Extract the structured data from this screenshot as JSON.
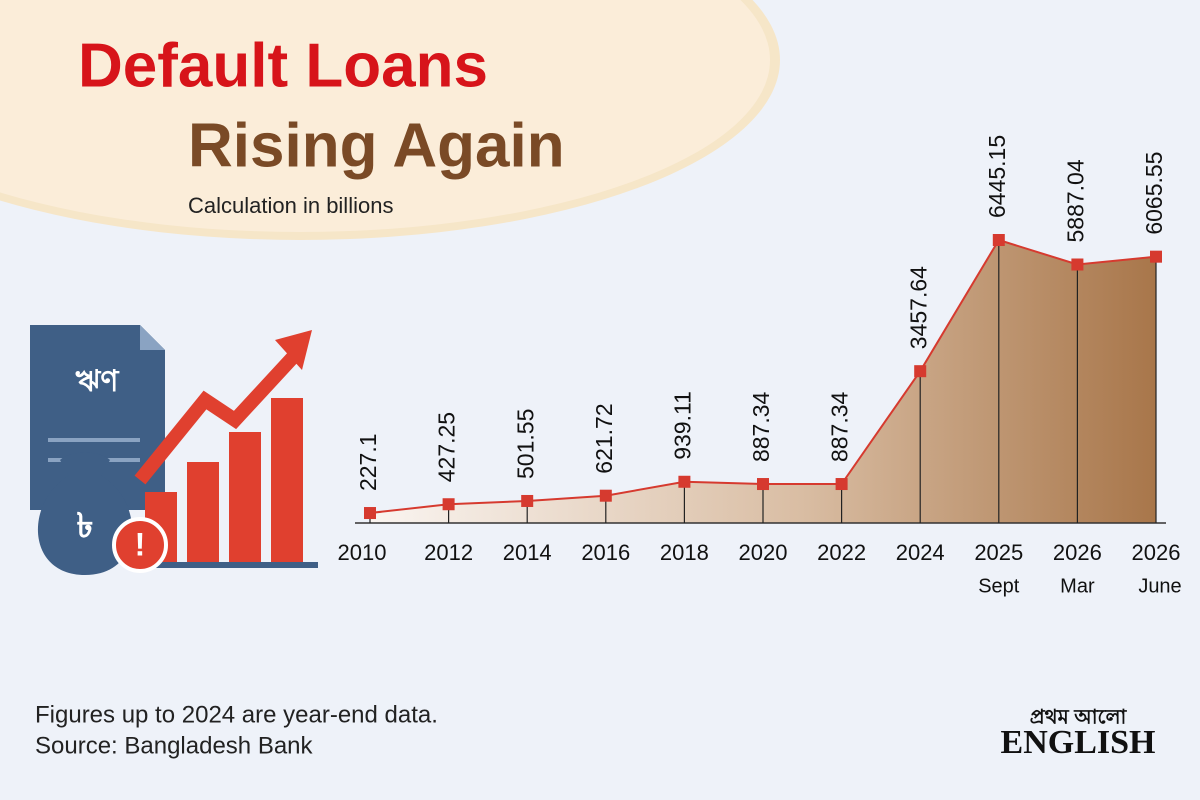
{
  "chart_data": {
    "type": "area-line",
    "title": "Default Loans",
    "title_line2": "Rising Again",
    "subtitle": "Calculation in billions",
    "categories": [
      "2010",
      "2012",
      "2014",
      "2016",
      "2018",
      "2020",
      "2022",
      "2024",
      "2025",
      "2026",
      "2026"
    ],
    "category_sublabels": [
      null,
      null,
      null,
      null,
      null,
      null,
      null,
      null,
      "Sept",
      "Mar",
      "June"
    ],
    "values": [
      227.1,
      427.25,
      501.55,
      621.72,
      939.11,
      887.34,
      887.34,
      3457.64,
      6445.15,
      5887.04,
      6065.55
    ],
    "color": "#d63a2f",
    "notes": [
      "Figures up to 2024 are year-end data.",
      "Source: Bangladesh Bank"
    ]
  },
  "icon_label": "ঋণ",
  "logo": {
    "bangla": "প্রথম আলো",
    "english": "ENGLISH"
  }
}
